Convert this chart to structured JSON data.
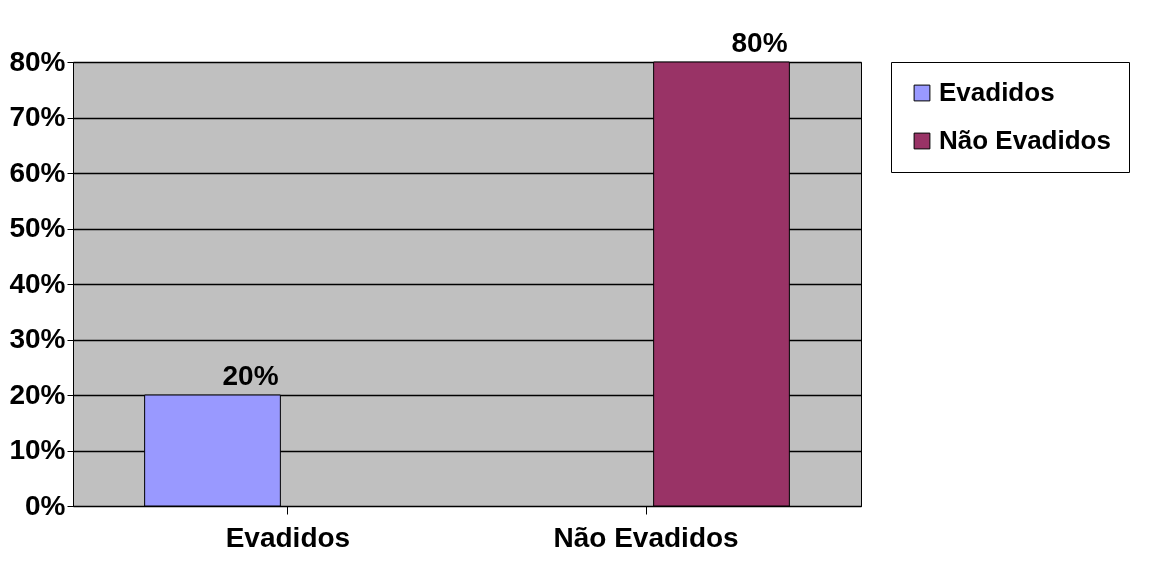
{
  "chart_data": {
    "type": "bar",
    "categories": [
      "Evadidos",
      "Não Evadidos"
    ],
    "series": [
      {
        "name": "Evadidos",
        "color": "#9999ff",
        "values": [
          20,
          null
        ],
        "value_labels": [
          "20%",
          null
        ]
      },
      {
        "name": "Não Evadidos",
        "color": "#993366",
        "values": [
          null,
          80
        ],
        "value_labels": [
          null,
          "80%"
        ]
      }
    ],
    "ylim": [
      0,
      80
    ],
    "yticks": [
      {
        "value": 0,
        "label": "0%"
      },
      {
        "value": 10,
        "label": "10%"
      },
      {
        "value": 20,
        "label": "20%"
      },
      {
        "value": 30,
        "label": "30%"
      },
      {
        "value": 40,
        "label": "40%"
      },
      {
        "value": 50,
        "label": "50%"
      },
      {
        "value": 60,
        "label": "60%"
      },
      {
        "value": 70,
        "label": "70%"
      },
      {
        "value": 80,
        "label": "80%"
      }
    ],
    "grid": "y",
    "legend": "right"
  }
}
